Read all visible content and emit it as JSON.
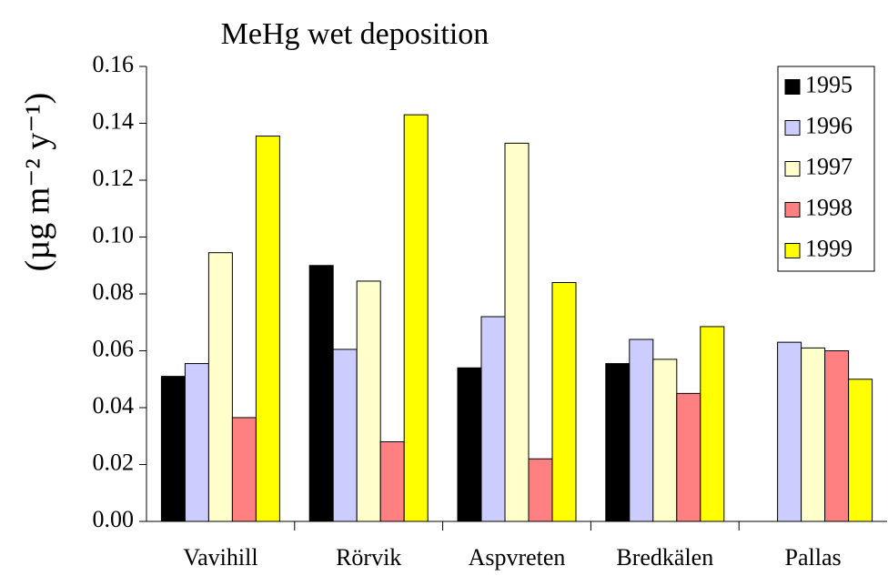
{
  "chart_data": {
    "type": "bar",
    "title": "MeHg wet deposition",
    "y_label": "(µg m⁻² y⁻¹)",
    "categories": [
      "Vavihill",
      "Rörvik",
      "Aspvreten",
      "Bredkälen",
      "Pallas"
    ],
    "series": [
      {
        "name": "1995",
        "color": "#000000",
        "values": [
          0.051,
          0.09,
          0.054,
          0.0555,
          null
        ]
      },
      {
        "name": "1996",
        "color": "#ccccff",
        "values": [
          0.0555,
          0.0605,
          0.072,
          0.064,
          0.063
        ]
      },
      {
        "name": "1997",
        "color": "#ffffcc",
        "values": [
          0.0945,
          0.0845,
          0.133,
          0.057,
          0.061
        ]
      },
      {
        "name": "1998",
        "color": "#ff8080",
        "values": [
          0.0365,
          0.028,
          0.022,
          0.045,
          0.06
        ]
      },
      {
        "name": "1999",
        "color": "#ffff00",
        "values": [
          0.1355,
          0.143,
          0.084,
          0.0685,
          0.05
        ]
      }
    ],
    "ylim": [
      0,
      0.16
    ],
    "yticks": [
      {
        "value": 0,
        "label": "0.00"
      },
      0.02,
      0.04,
      0.06,
      0.08,
      {
        "value": 0.1,
        "label": "0.10"
      },
      0.12,
      0.14,
      0.16
    ],
    "legend": "top-right"
  }
}
